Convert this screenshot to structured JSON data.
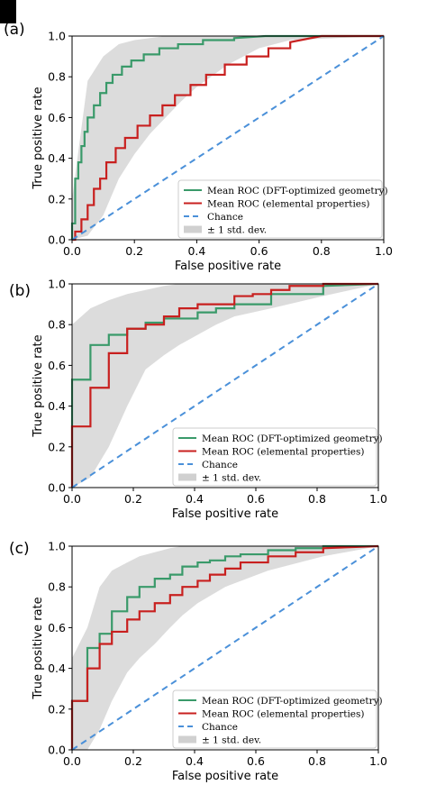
{
  "colors": {
    "dft": "#3a9a6a",
    "elemental": "#c8201f",
    "chance": "#4a90d9",
    "band": "#d0d0d0",
    "axis": "#000000"
  },
  "chart_data": [
    {
      "panel_label": "(a)",
      "type": "line",
      "xlabel": "False positive rate",
      "ylabel": "True positive rate",
      "xlim": [
        0,
        1
      ],
      "ylim": [
        0,
        1
      ],
      "xticks": [
        "0.0",
        "0.2",
        "0.4",
        "0.6",
        "0.8",
        "1.0"
      ],
      "yticks": [
        "0.0",
        "0.2",
        "0.4",
        "0.6",
        "0.8",
        "1.0"
      ],
      "grid": false,
      "legend_placement": "lower-right",
      "legend": [
        "Mean ROC (DFT-optimized geometry)",
        "Mean ROC (elemental properties)",
        "Chance",
        "± 1 std. dev."
      ],
      "series": [
        {
          "name": "Mean ROC (DFT-optimized geometry)",
          "x": [
            0,
            0,
            0.01,
            0.01,
            0.02,
            0.02,
            0.03,
            0.03,
            0.04,
            0.04,
            0.05,
            0.05,
            0.07,
            0.07,
            0.09,
            0.09,
            0.11,
            0.11,
            0.13,
            0.13,
            0.16,
            0.16,
            0.19,
            0.19,
            0.23,
            0.23,
            0.28,
            0.28,
            0.34,
            0.34,
            0.42,
            0.42,
            0.52,
            0.52,
            0.62,
            1.0
          ],
          "y": [
            0,
            0.08,
            0.08,
            0.3,
            0.3,
            0.38,
            0.38,
            0.46,
            0.46,
            0.53,
            0.53,
            0.6,
            0.6,
            0.66,
            0.66,
            0.72,
            0.72,
            0.77,
            0.77,
            0.81,
            0.81,
            0.85,
            0.85,
            0.88,
            0.88,
            0.91,
            0.91,
            0.94,
            0.94,
            0.96,
            0.96,
            0.98,
            0.98,
            0.99,
            1.0,
            1.0
          ]
        },
        {
          "name": "Mean ROC (elemental properties)",
          "x": [
            0,
            0.01,
            0.01,
            0.03,
            0.03,
            0.05,
            0.05,
            0.07,
            0.07,
            0.09,
            0.09,
            0.11,
            0.11,
            0.14,
            0.14,
            0.17,
            0.17,
            0.21,
            0.21,
            0.25,
            0.25,
            0.29,
            0.29,
            0.33,
            0.33,
            0.38,
            0.38,
            0.43,
            0.43,
            0.49,
            0.49,
            0.56,
            0.56,
            0.63,
            0.63,
            0.7,
            0.7,
            0.8,
            1.0
          ],
          "y": [
            0,
            0,
            0.04,
            0.04,
            0.1,
            0.1,
            0.17,
            0.17,
            0.25,
            0.25,
            0.3,
            0.3,
            0.38,
            0.38,
            0.45,
            0.45,
            0.5,
            0.5,
            0.56,
            0.56,
            0.61,
            0.61,
            0.66,
            0.66,
            0.71,
            0.71,
            0.76,
            0.76,
            0.81,
            0.81,
            0.86,
            0.86,
            0.9,
            0.9,
            0.94,
            0.94,
            0.97,
            1.0,
            1.0
          ]
        },
        {
          "name": "Chance",
          "x": [
            0,
            1
          ],
          "y": [
            0,
            1
          ]
        }
      ],
      "band": {
        "x": [
          0,
          0.05,
          0.1,
          0.15,
          0.2,
          0.25,
          0.3,
          0.35,
          0.4,
          0.5,
          0.6,
          0.7,
          1.0
        ],
        "lower": [
          0,
          0.02,
          0.12,
          0.3,
          0.42,
          0.52,
          0.6,
          0.68,
          0.75,
          0.86,
          0.94,
          0.98,
          1.0
        ],
        "upper": [
          0.2,
          0.78,
          0.9,
          0.96,
          0.98,
          0.99,
          1.0,
          1.0,
          1.0,
          1.0,
          1.0,
          1.0,
          1.0
        ]
      }
    },
    {
      "panel_label": "(b)",
      "type": "line",
      "xlabel": "False positive rate",
      "ylabel": "True positive rate",
      "xlim": [
        0,
        1
      ],
      "ylim": [
        0,
        1
      ],
      "xticks": [
        "0.0",
        "0.2",
        "0.4",
        "0.6",
        "0.8",
        "1.0"
      ],
      "yticks": [
        "0.0",
        "0.2",
        "0.4",
        "0.6",
        "0.8",
        "1.0"
      ],
      "grid": false,
      "legend_placement": "lower-right",
      "legend": [
        "Mean ROC (DFT-optimized geometry)",
        "Mean ROC (elemental properties)",
        "Chance",
        "± 1 std. dev."
      ],
      "series": [
        {
          "name": "Mean ROC (DFT-optimized geometry)",
          "x": [
            0,
            0,
            0.06,
            0.06,
            0.12,
            0.12,
            0.18,
            0.18,
            0.24,
            0.24,
            0.3,
            0.3,
            0.41,
            0.41,
            0.47,
            0.47,
            0.53,
            0.53,
            0.65,
            0.65,
            0.82,
            0.82,
            1.0
          ],
          "y": [
            0,
            0.53,
            0.53,
            0.7,
            0.7,
            0.75,
            0.75,
            0.78,
            0.78,
            0.81,
            0.81,
            0.83,
            0.83,
            0.86,
            0.86,
            0.88,
            0.88,
            0.9,
            0.9,
            0.95,
            0.95,
            0.99,
            1.0
          ]
        },
        {
          "name": "Mean ROC (elemental properties)",
          "x": [
            0,
            0,
            0.06,
            0.06,
            0.12,
            0.12,
            0.18,
            0.18,
            0.24,
            0.24,
            0.3,
            0.3,
            0.35,
            0.35,
            0.41,
            0.41,
            0.53,
            0.53,
            0.59,
            0.59,
            0.65,
            0.65,
            0.71,
            0.71,
            0.82,
            0.82,
            1.0
          ],
          "y": [
            0,
            0.3,
            0.3,
            0.49,
            0.49,
            0.66,
            0.66,
            0.78,
            0.78,
            0.8,
            0.8,
            0.84,
            0.84,
            0.88,
            0.88,
            0.9,
            0.9,
            0.94,
            0.94,
            0.95,
            0.95,
            0.97,
            0.97,
            0.99,
            0.99,
            1.0,
            1.0
          ]
        },
        {
          "name": "Chance",
          "x": [
            0,
            1
          ],
          "y": [
            0,
            1
          ]
        }
      ],
      "band": {
        "x": [
          0,
          0.06,
          0.12,
          0.18,
          0.24,
          0.3,
          0.35,
          0.41,
          0.47,
          0.53,
          0.65,
          0.82,
          1.0
        ],
        "lower": [
          0,
          0.05,
          0.2,
          0.4,
          0.58,
          0.65,
          0.7,
          0.75,
          0.8,
          0.84,
          0.88,
          0.94,
          1.0
        ],
        "upper": [
          0.8,
          0.88,
          0.92,
          0.95,
          0.97,
          0.99,
          1.0,
          1.0,
          1.0,
          1.0,
          1.0,
          1.0,
          1.0
        ]
      }
    },
    {
      "panel_label": "(c)",
      "type": "line",
      "xlabel": "False positive rate",
      "ylabel": "True positive rate",
      "xlim": [
        0,
        1
      ],
      "ylim": [
        0,
        1
      ],
      "xticks": [
        "0.0",
        "0.2",
        "0.4",
        "0.6",
        "0.8",
        "1.0"
      ],
      "yticks": [
        "0.0",
        "0.2",
        "0.4",
        "0.6",
        "0.8",
        "1.0"
      ],
      "grid": false,
      "legend_placement": "lower-right",
      "legend": [
        "Mean ROC (DFT-optimized geometry)",
        "Mean ROC (elemental properties)",
        "Chance",
        "± 1 std. dev."
      ],
      "series": [
        {
          "name": "Mean ROC (DFT-optimized geometry)",
          "x": [
            0,
            0,
            0.05,
            0.05,
            0.09,
            0.09,
            0.13,
            0.13,
            0.18,
            0.18,
            0.22,
            0.22,
            0.27,
            0.27,
            0.32,
            0.32,
            0.36,
            0.36,
            0.41,
            0.41,
            0.45,
            0.45,
            0.5,
            0.5,
            0.55,
            0.55,
            0.64,
            0.64,
            0.73,
            0.73,
            0.82,
            0.82,
            1.0
          ],
          "y": [
            0,
            0.24,
            0.24,
            0.5,
            0.5,
            0.57,
            0.57,
            0.68,
            0.68,
            0.75,
            0.75,
            0.8,
            0.8,
            0.84,
            0.84,
            0.86,
            0.86,
            0.9,
            0.9,
            0.92,
            0.92,
            0.93,
            0.93,
            0.95,
            0.95,
            0.96,
            0.96,
            0.98,
            0.98,
            0.99,
            0.99,
            1.0,
            1.0
          ]
        },
        {
          "name": "Mean ROC (elemental properties)",
          "x": [
            0,
            0,
            0.05,
            0.05,
            0.09,
            0.09,
            0.13,
            0.13,
            0.18,
            0.18,
            0.22,
            0.22,
            0.27,
            0.27,
            0.32,
            0.32,
            0.36,
            0.36,
            0.41,
            0.41,
            0.45,
            0.45,
            0.5,
            0.5,
            0.55,
            0.55,
            0.64,
            0.64,
            0.73,
            0.73,
            0.82,
            0.82,
            1.0
          ],
          "y": [
            0,
            0.24,
            0.24,
            0.4,
            0.4,
            0.52,
            0.52,
            0.58,
            0.58,
            0.64,
            0.64,
            0.68,
            0.68,
            0.72,
            0.72,
            0.76,
            0.76,
            0.8,
            0.8,
            0.83,
            0.83,
            0.86,
            0.86,
            0.89,
            0.89,
            0.92,
            0.92,
            0.95,
            0.95,
            0.97,
            0.97,
            0.99,
            1.0
          ]
        },
        {
          "name": "Chance",
          "x": [
            0,
            1
          ],
          "y": [
            0,
            1
          ]
        }
      ],
      "band": {
        "x": [
          0,
          0.05,
          0.09,
          0.13,
          0.18,
          0.22,
          0.27,
          0.32,
          0.36,
          0.41,
          0.5,
          0.64,
          0.82,
          1.0
        ],
        "lower": [
          0,
          0.0,
          0.1,
          0.24,
          0.38,
          0.45,
          0.52,
          0.6,
          0.66,
          0.72,
          0.8,
          0.88,
          0.95,
          1.0
        ],
        "upper": [
          0.45,
          0.6,
          0.8,
          0.88,
          0.92,
          0.95,
          0.97,
          0.99,
          1.0,
          1.0,
          1.0,
          1.0,
          1.0,
          1.0
        ]
      }
    }
  ]
}
